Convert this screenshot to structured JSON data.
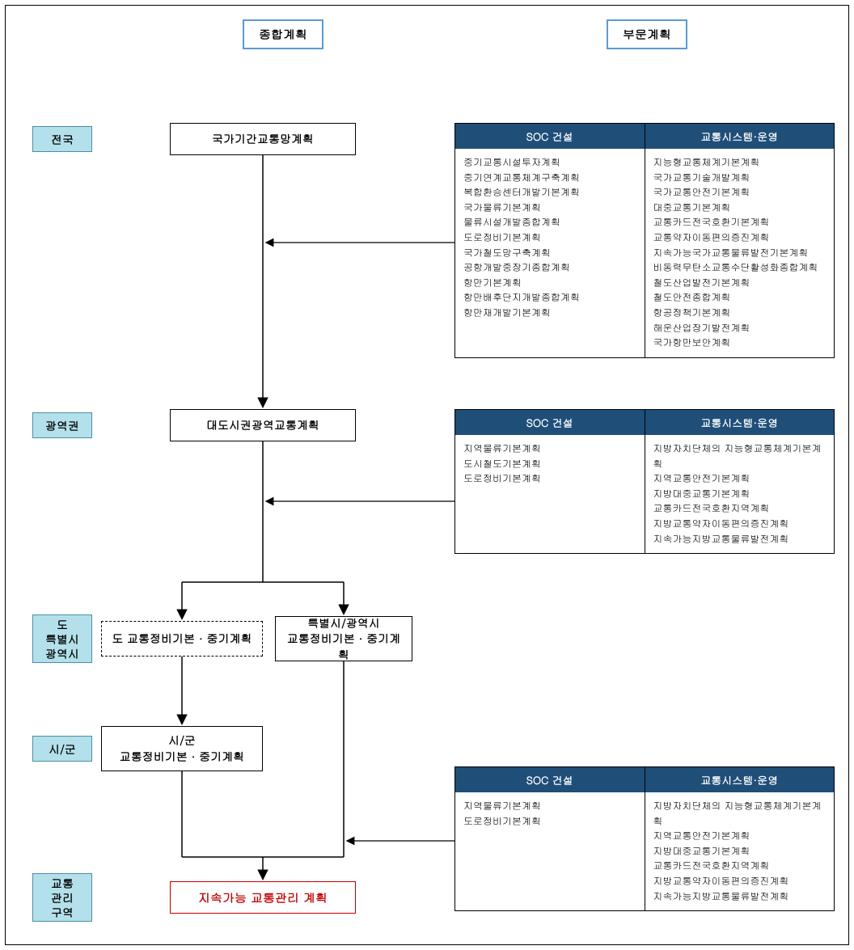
{
  "colors": {
    "header_border": "#5b9bd5",
    "row_label_bg": "#b3e0ea",
    "row_label_border": "#4a90a4",
    "table_header_bg": "#1f4e79",
    "table_header_fg": "#ffffff",
    "red_box_border": "#c00000",
    "line": "#000000"
  },
  "headers": {
    "comprehensive": "종합계획",
    "sector": "부문계획"
  },
  "rows": {
    "national": "전국",
    "metro_region": "광역권",
    "province_city": "도\n특별시\n광역시",
    "city_county": "시/군",
    "traffic_zone": "교통\n관리\n구역"
  },
  "plans": {
    "national_backbone": "국가기간교통망계획",
    "metro_wide": "대도시권광역교통계획",
    "province_maint": "도 교통정비기본 · 중기계획",
    "special_metro_maint": "특별시/광역시\n교통정비기본 · 중기계획",
    "city_county_maint": "시/군\n교통정비기본 · 중기계획",
    "sustainable": "지속가능 교통관리 계획"
  },
  "table_headers": {
    "soc": "SOC 건설",
    "system_ops": "교통시스템·운영"
  },
  "table1": {
    "soc": [
      "중기교통시설투자계획",
      "중기연계교통체계구축계획",
      "복합환승센터개발기본계획",
      "국가물류기본계획",
      "물류시설개발종합계획",
      "도로정비기본계획",
      "국가철도망구축계획",
      "공항개발중장기종합계획",
      "항만기본계획",
      "항만배후단지개발종합계획",
      "항만재개발기본계획"
    ],
    "ops": [
      "지능형교통체계기본계획",
      "국가교통기술개발계획",
      "국가교통안전기본계획",
      "대중교통기본계획",
      "교통카드전국호환기본계획",
      "교통약자이동편의증진계획",
      "지속가능국가교통물류발전기본계획",
      "비동력무탄소교통수단활성화종합계획",
      "철도산업발전기본계획",
      "철도안전종합계획",
      "항공정책기본계획",
      "해운산업장기발전계획",
      "국가항만보안계획"
    ]
  },
  "table2": {
    "soc": [
      "지역물류기본계획",
      "도시철도기본계획",
      "도로정비기본계획"
    ],
    "ops": [
      "지방자치단체의 지능형교통체계기본계획",
      "지역교통안전기본계획",
      "지방대중교통기본계획",
      "교통카드전국호환지역계획",
      "지방교통약자이동편의증진계획",
      "지속가능지방교통물류발전계획"
    ]
  },
  "table3": {
    "soc": [
      "지역물류기본계획",
      "도로정비기본계획"
    ],
    "ops": [
      "지방자치단체의 지능형교통체계기본계획",
      "지역교통안전기본계획",
      "지방대중교통기본계획",
      "교통카드전국호환지역계획",
      "지방교통약자이동편의증진계획",
      "지속가능지방교통물류발전계획"
    ]
  }
}
